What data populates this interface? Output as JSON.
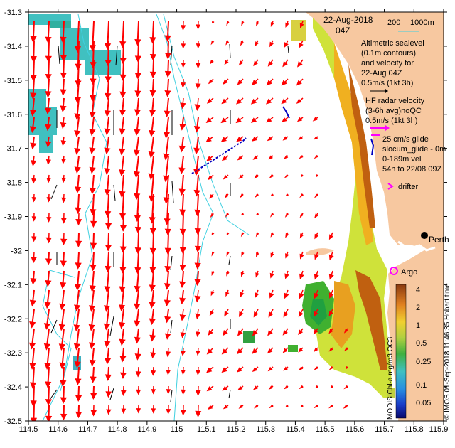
{
  "header": {
    "date": "22-Aug-2018",
    "time": "04Z"
  },
  "bathymetry_legend": {
    "shallow": "200",
    "deep": "1000m"
  },
  "legend": {
    "altimetry": [
      "Altimetric sealevel",
      "(0.1m contours)",
      "and velocity for",
      "22-Aug 04Z",
      "0.5m/s (1kt 3h)"
    ],
    "hf_radar": [
      "HF radar velocity",
      "(3-6h avg)noQC",
      "0.5m/s (1kt 3h)"
    ],
    "glider": [
      "25 cm/s glide",
      "slocum_glide - 0m",
      "0-189m vel",
      "54h to 22/08 09Z"
    ],
    "drifter": "drifter",
    "argo": "Argo",
    "city": "Perth"
  },
  "colorbar": {
    "ticks": [
      "4",
      "2",
      "1",
      "0.5",
      "0.25",
      "0.1",
      "0.05"
    ],
    "title": "MODIS Chl-a mg/m3 OC3",
    "credit": "© IMOS 01-Sep-2018 11:46:35 Hobart time"
  },
  "axes": {
    "x_ticks": [
      "114.5",
      "114.6",
      "114.7",
      "114.8",
      "114.9",
      "115",
      "115.1",
      "115.2",
      "115.3",
      "115.4",
      "115.5",
      "115.6",
      "115.7",
      "115.8",
      "115.9"
    ],
    "y_ticks": [
      "-31.3",
      "-31.4",
      "-31.5",
      "-31.6",
      "-31.7",
      "-31.8",
      "-31.9",
      "-32",
      "-32.1",
      "-32.2",
      "-32.3",
      "-32.4",
      "-32.5"
    ],
    "x_range": [
      114.5,
      115.9
    ],
    "y_range": [
      -32.5,
      -31.3
    ]
  },
  "colors": {
    "land": "#f7c8a0",
    "hf_arrow": "#ff0000",
    "alt_arrow": "#000000",
    "contour": "#40d0e0",
    "magenta": "#ff00ff",
    "glider": "#0000c0"
  }
}
